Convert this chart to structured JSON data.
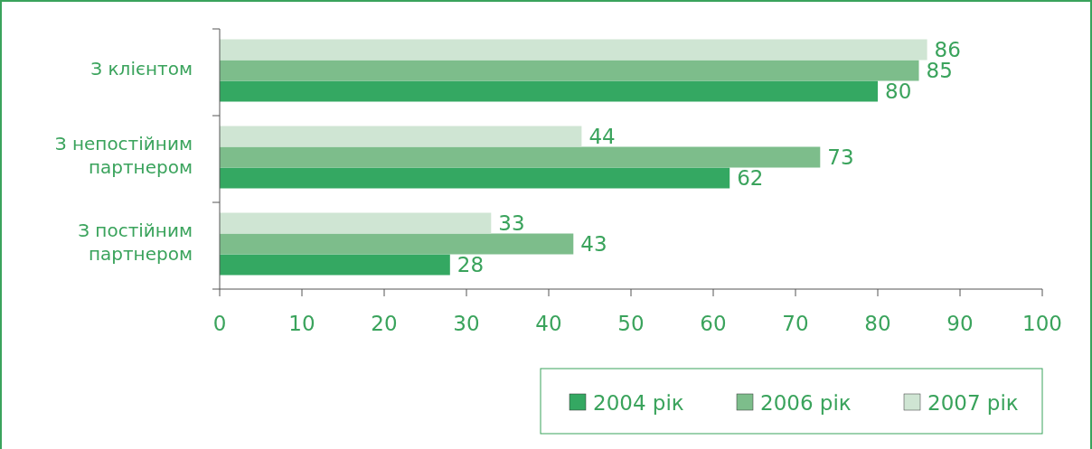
{
  "chart_data": {
    "type": "bar",
    "orientation": "horizontal",
    "categories": [
      "З клієнтом",
      "З непостійним партнером",
      "З постійним партнером"
    ],
    "series": [
      {
        "name": "2004 рік",
        "color": "#34a862",
        "values": [
          80,
          62,
          28
        ]
      },
      {
        "name": "2006 рік",
        "color": "#7dbd8b",
        "values": [
          85,
          73,
          43
        ]
      },
      {
        "name": "2007 рік",
        "color": "#cfe5d3",
        "values": [
          86,
          44,
          33
        ]
      }
    ],
    "xlim": [
      0,
      100
    ],
    "xticks": [
      0,
      10,
      20,
      30,
      40,
      50,
      60,
      70,
      80,
      90,
      100
    ],
    "data_labels": true,
    "legend": "bottom right",
    "grid": false
  }
}
